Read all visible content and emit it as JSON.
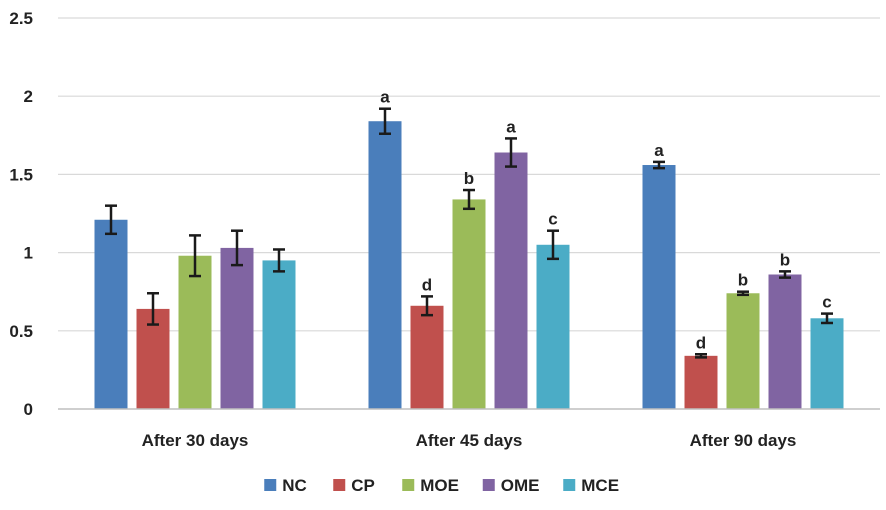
{
  "chart_data": {
    "type": "bar",
    "title": "",
    "xlabel": "",
    "ylabel": "",
    "ylim": [
      0,
      2.5
    ],
    "yticks": [
      "0",
      "0.5",
      "1",
      "1.5",
      "2",
      "2.5"
    ],
    "categories": [
      "After 30 days",
      "After 45 days",
      "After 90 days"
    ],
    "grid": true,
    "legend_position": "bottom",
    "series": [
      {
        "name": "NC",
        "color": "#4a7ebb",
        "values": [
          1.21,
          1.84,
          1.56
        ],
        "errors": [
          0.09,
          0.08,
          0.02
        ],
        "labels": [
          "",
          "a",
          "a"
        ]
      },
      {
        "name": "CP",
        "color": "#c0504d",
        "values": [
          0.64,
          0.66,
          0.34
        ],
        "errors": [
          0.1,
          0.06,
          0.01
        ],
        "labels": [
          "",
          "d",
          "d"
        ]
      },
      {
        "name": "MOE",
        "color": "#9bbb59",
        "values": [
          0.98,
          1.34,
          0.74
        ],
        "errors": [
          0.13,
          0.06,
          0.01
        ],
        "labels": [
          "",
          "b",
          "b"
        ]
      },
      {
        "name": "OME",
        "color": "#8064a2",
        "values": [
          1.03,
          1.64,
          0.86
        ],
        "errors": [
          0.11,
          0.09,
          0.02
        ],
        "labels": [
          "",
          "a",
          "b"
        ]
      },
      {
        "name": "MCE",
        "color": "#4bacc6",
        "values": [
          0.95,
          1.05,
          0.58
        ],
        "errors": [
          0.07,
          0.09,
          0.03
        ],
        "labels": [
          "",
          "c",
          "c"
        ]
      }
    ]
  }
}
